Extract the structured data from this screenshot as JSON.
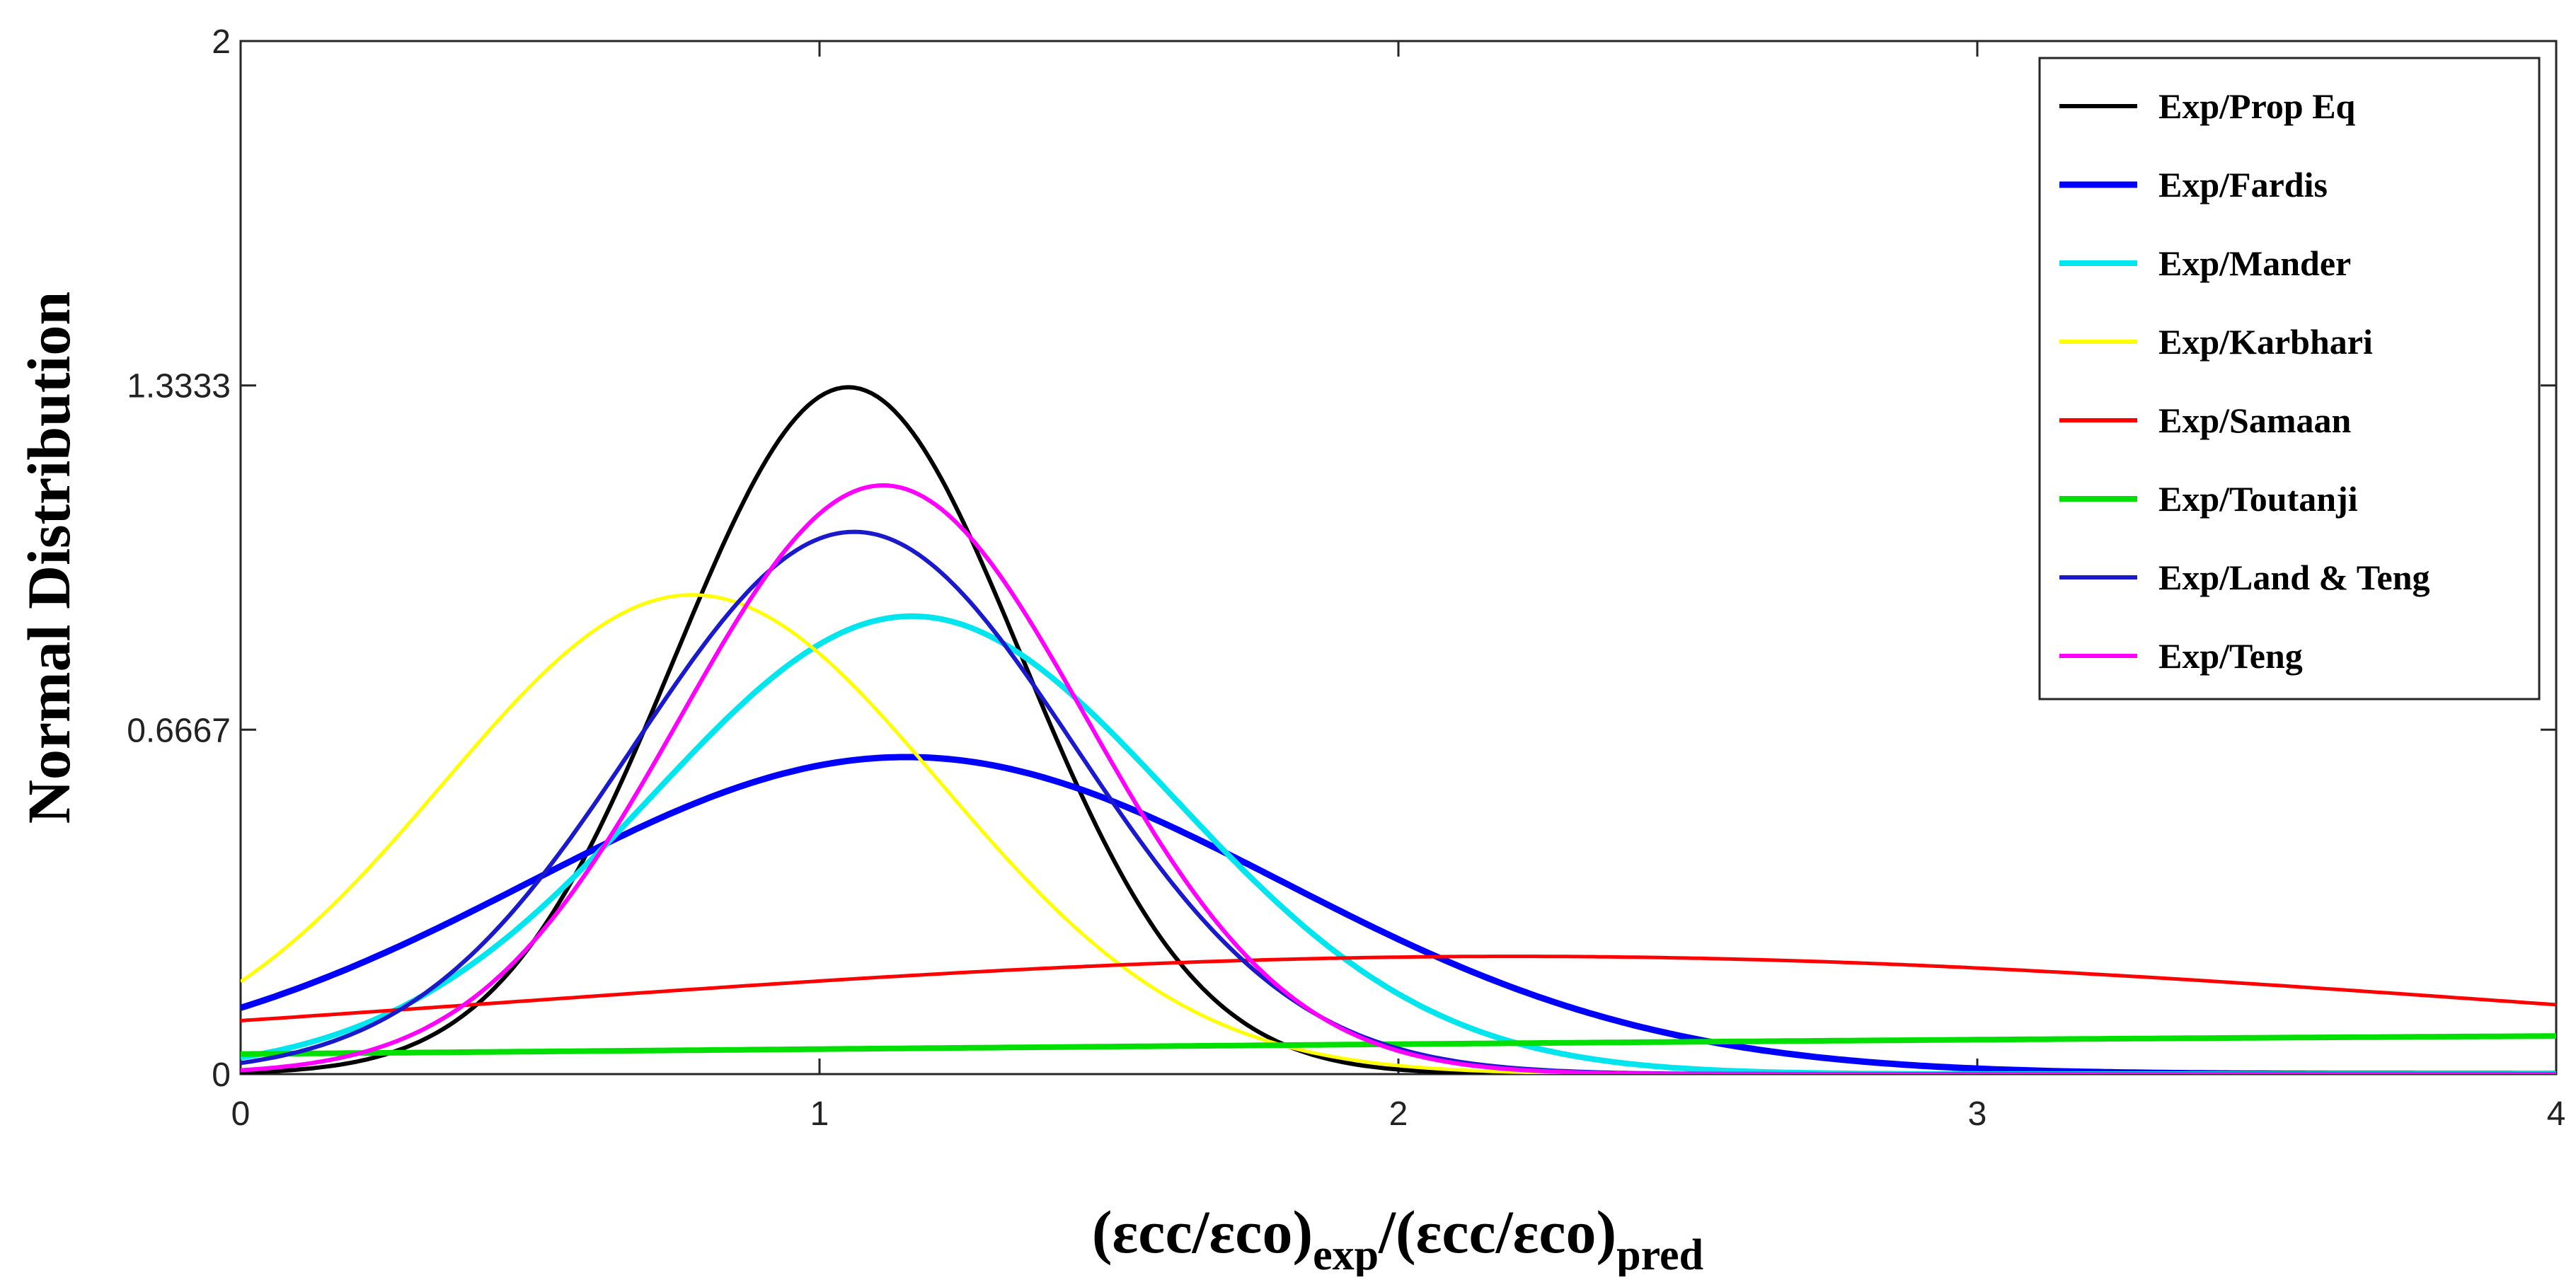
{
  "chart_data": {
    "type": "line",
    "title": "",
    "xlabel": {
      "base": "(εcc/εco)",
      "sub1": "exp",
      "mid": "/(εcc/εco)",
      "sub2": "pred"
    },
    "ylabel": "Normal Distribution",
    "xlim": [
      0,
      4
    ],
    "ylim": [
      0,
      2
    ],
    "xticks": [
      {
        "value": 0,
        "label": "0"
      },
      {
        "value": 1,
        "label": "1"
      },
      {
        "value": 2,
        "label": "2"
      },
      {
        "value": 3,
        "label": "3"
      },
      {
        "value": 4,
        "label": "4"
      }
    ],
    "yticks": [
      {
        "value": 0,
        "label": "0"
      },
      {
        "value": 0.6667,
        "label": "0.6667"
      },
      {
        "value": 1.3333,
        "label": "1.3333"
      },
      {
        "value": 2,
        "label": "2"
      }
    ],
    "legend_position": "top-right",
    "grid": false,
    "series": [
      {
        "name": "Exp/Prop Eq",
        "color": "#000000",
        "mean": 1.05,
        "std": 0.3,
        "width": 6
      },
      {
        "name": "Exp/Fardis",
        "color": "#0000ff",
        "mean": 1.15,
        "std": 0.65,
        "width": 9
      },
      {
        "name": "Exp/Mander",
        "color": "#00e5ee",
        "mean": 1.16,
        "std": 0.45,
        "width": 8
      },
      {
        "name": "Exp/Karbhari",
        "color": "#ffff00",
        "mean": 0.78,
        "std": 0.43,
        "width": 5
      },
      {
        "name": "Exp/Samaan",
        "color": "#ff0000",
        "mean": 2.2,
        "std": 1.75,
        "width": 5
      },
      {
        "name": "Exp/Toutanji",
        "color": "#00e000",
        "mean": 6.0,
        "std": 5.0,
        "width": 8
      },
      {
        "name": "Exp/Land & Teng",
        "color": "#1a1acc",
        "mean": 1.06,
        "std": 0.38,
        "width": 6
      },
      {
        "name": "Exp/Teng",
        "color": "#ff00ff",
        "mean": 1.11,
        "std": 0.35,
        "width": 6
      }
    ]
  }
}
